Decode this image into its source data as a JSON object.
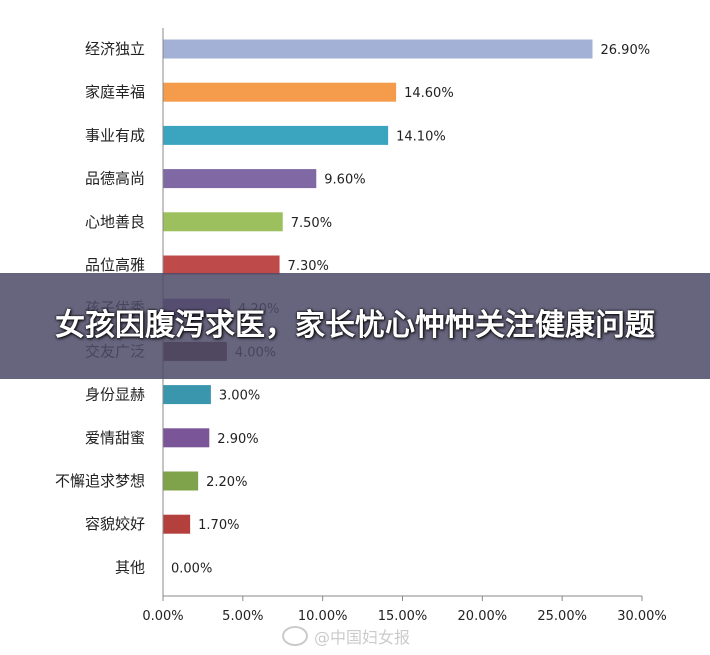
{
  "overlay": {
    "title": "女孩因腹泻求医，家长忧心忡忡关注健康问题"
  },
  "watermark": {
    "text": "@中国妇女报"
  },
  "chart_data": {
    "type": "bar",
    "orientation": "horizontal",
    "categories": [
      "经济独立",
      "家庭幸福",
      "事业有成",
      "品德高尚",
      "心地善良",
      "品位高雅",
      "孩子优秀",
      "交友广泛",
      "身份显赫",
      "爱情甜蜜",
      "不懈追求梦想",
      "容貌姣好",
      "其他"
    ],
    "values": [
      26.9,
      14.6,
      14.1,
      9.6,
      7.5,
      7.3,
      4.2,
      4.0,
      3.0,
      2.9,
      2.2,
      1.7,
      0.0
    ],
    "value_labels": [
      "26.90%",
      "14.60%",
      "14.10%",
      "9.60%",
      "7.50%",
      "7.30%",
      "4.20%",
      "4.00%",
      "3.00%",
      "2.90%",
      "2.20%",
      "1.70%",
      "0.00%"
    ],
    "colors": [
      "#a3b1d6",
      "#f59b4c",
      "#3ba5c0",
      "#8068a5",
      "#9dc05e",
      "#be4b49",
      "#8064a2",
      "#5a3a3a",
      "#3a96ad",
      "#7a5698",
      "#7fa34a",
      "#b3403d",
      "#888888"
    ],
    "xlim": [
      0,
      30
    ],
    "xticks": [
      "0.00%",
      "5.00%",
      "10.00%",
      "15.00%",
      "20.00%",
      "25.00%",
      "30.00%"
    ],
    "title": "",
    "xlabel": "",
    "ylabel": "",
    "grid": false
  }
}
